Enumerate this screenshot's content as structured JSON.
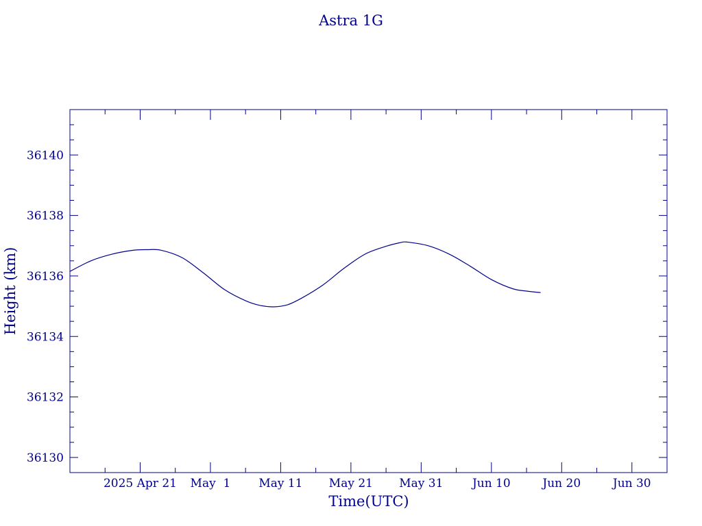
{
  "colors": {
    "foreground": "#00008b",
    "background": "#ffffff"
  },
  "chart_data": {
    "type": "line",
    "title": "Astra 1G",
    "xlabel": "Time(UTC)",
    "ylabel": "Height (km)",
    "x_tick_labels": [
      "2025 Apr 21",
      "May  1",
      "May 11",
      "May 21",
      "May 31",
      "Jun 10",
      "Jun 20",
      "Jun 30"
    ],
    "y_tick_labels": [
      "36130",
      "36132",
      "36134",
      "36136",
      "36138",
      "36140"
    ],
    "xlim": [
      "2025-04-11",
      "2025-07-05"
    ],
    "ylim": [
      36129.5,
      36141.5
    ],
    "grid": false,
    "series": [
      {
        "x": [
          "2025-04-11",
          "2025-04-14",
          "2025-04-17",
          "2025-04-20",
          "2025-04-22",
          "2025-04-24",
          "2025-04-27",
          "2025-04-30",
          "2025-05-03",
          "2025-05-06",
          "2025-05-08",
          "2025-05-10",
          "2025-05-12",
          "2025-05-14",
          "2025-05-17",
          "2025-05-20",
          "2025-05-23",
          "2025-05-26",
          "2025-05-28",
          "2025-05-29",
          "2025-06-01",
          "2025-06-04",
          "2025-06-07",
          "2025-06-10",
          "2025-06-13",
          "2025-06-15",
          "2025-06-17"
        ],
        "y": [
          36136.15,
          36136.5,
          36136.72,
          36136.85,
          36136.87,
          36136.85,
          36136.6,
          36136.1,
          36135.55,
          36135.18,
          36135.03,
          36134.98,
          36135.05,
          36135.27,
          36135.7,
          36136.25,
          36136.72,
          36136.98,
          36137.1,
          36137.12,
          36137.0,
          36136.72,
          36136.32,
          36135.88,
          36135.58,
          36135.5,
          36135.45
        ]
      }
    ]
  }
}
